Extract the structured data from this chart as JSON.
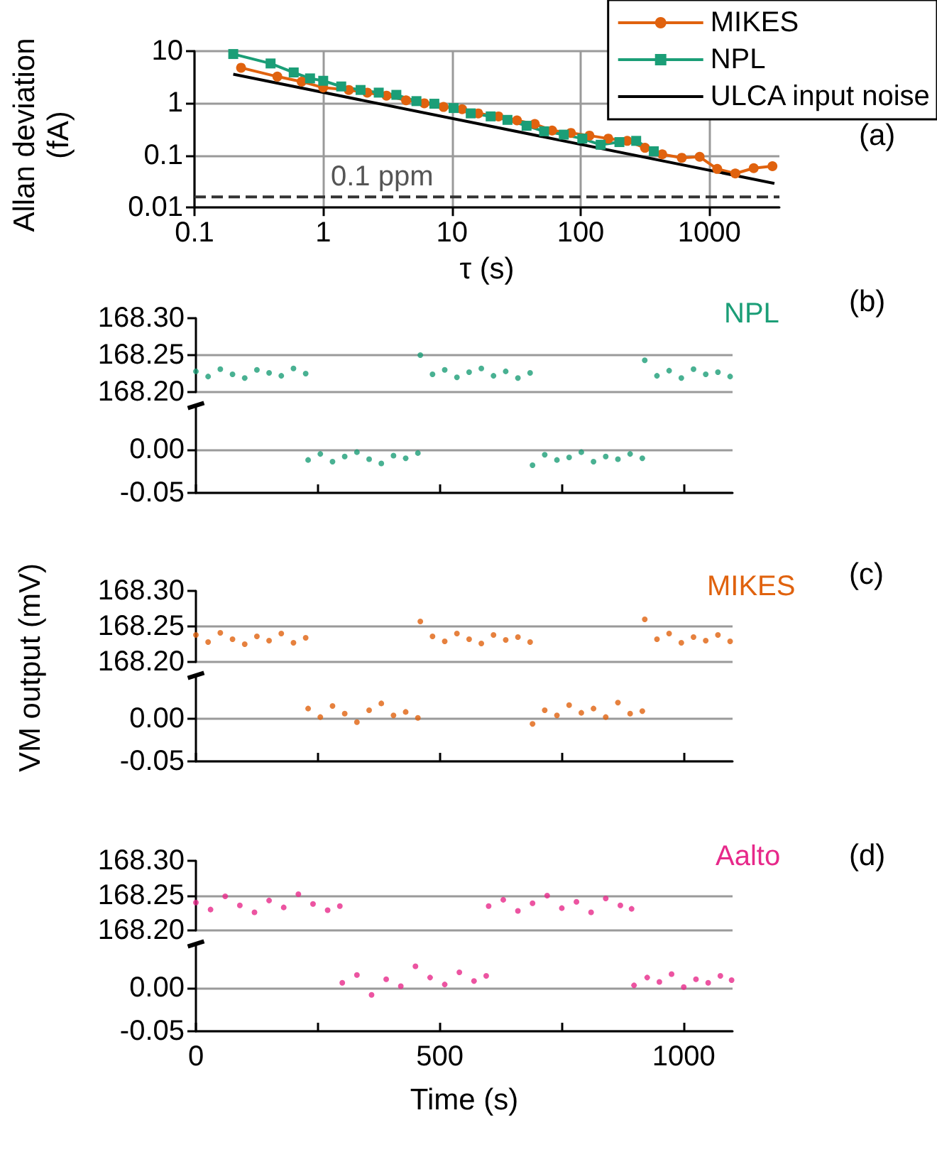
{
  "chart_data": [
    {
      "type": "line",
      "ylabel": "Allan deviation (fA)",
      "xlabel": "τ (s)",
      "log": "xy",
      "grid": true,
      "legend": "top right",
      "annotations": [
        "(a)"
      ],
      "xlim": [
        0.1,
        3500
      ],
      "xticks": [
        0.1,
        1,
        10,
        100,
        1000
      ],
      "ylim": [
        0.01,
        10
      ],
      "yticks": [
        0.01,
        0.1,
        1,
        10
      ],
      "ref_lines": [
        {
          "axis": "y",
          "value": 0.016,
          "label": "0.1 ppm",
          "color": "#333333",
          "line_style": "dashed"
        }
      ],
      "series": [
        {
          "name": "MIKES",
          "color": "#e0620e",
          "marker": "circle",
          "x": [
            0.23,
            0.44,
            0.68,
            1.0,
            1.58,
            2.2,
            3.1,
            4.4,
            6.1,
            8.6,
            12,
            16,
            23,
            32,
            44,
            60,
            84,
            117,
            164,
            230,
            316,
            430,
            610,
            840,
            1150,
            1590,
            2210,
            3090
          ],
          "values": [
            4.8,
            3.25,
            2.6,
            2.0,
            1.8,
            1.6,
            1.4,
            1.14,
            1.0,
            0.85,
            0.77,
            0.64,
            0.56,
            0.47,
            0.4,
            0.3,
            0.27,
            0.24,
            0.21,
            0.19,
            0.14,
            0.105,
            0.09,
            0.094,
            0.055,
            0.045,
            0.057,
            0.062
          ]
        },
        {
          "name": "NPL",
          "color": "#1b9e77",
          "marker": "square",
          "x": [
            0.2,
            0.39,
            0.59,
            0.79,
            1.0,
            1.38,
            1.95,
            2.7,
            3.7,
            5.3,
            7.3,
            10.3,
            14,
            20,
            27,
            38,
            52,
            74,
            103,
            143,
            200,
            270,
            370
          ],
          "values": [
            8.8,
            5.8,
            3.9,
            3.0,
            2.7,
            2.1,
            1.8,
            1.6,
            1.45,
            1.1,
            0.98,
            0.81,
            0.64,
            0.56,
            0.48,
            0.37,
            0.29,
            0.25,
            0.21,
            0.16,
            0.18,
            0.19,
            0.12
          ]
        },
        {
          "name": "ULCA input noise",
          "color": "#000000",
          "marker": "none",
          "x": [
            0.2,
            3200
          ],
          "values": [
            3.6,
            0.029
          ]
        }
      ]
    },
    {
      "type": "scatter",
      "marker": "circle",
      "legend": "top right",
      "grid": "y",
      "tick_labels": "y",
      "annotations": [
        "(b)"
      ],
      "xlim": [
        0,
        1100
      ],
      "ylim": [
        168.2,
        168.3
      ],
      "yticks": [
        {
          "value": 168.2,
          "label": "168.20"
        },
        {
          "value": 168.25,
          "label": "168.25"
        },
        {
          "value": 168.3,
          "label": "168.30"
        }
      ],
      "series": [
        {
          "name": "NPL",
          "color": "#1b9e77",
          "x": [
            0,
            25,
            50,
            75,
            100,
            125,
            150,
            175,
            200,
            225,
            460,
            485,
            510,
            535,
            560,
            585,
            610,
            635,
            660,
            685,
            920,
            945,
            970,
            995,
            1020,
            1045,
            1070,
            1095
          ],
          "values": [
            168.228,
            168.221,
            168.231,
            168.224,
            168.219,
            168.23,
            168.226,
            168.222,
            168.232,
            168.225,
            168.25,
            168.224,
            168.23,
            168.22,
            168.227,
            168.232,
            168.222,
            168.228,
            168.219,
            168.226,
            168.243,
            168.222,
            168.229,
            168.219,
            168.231,
            168.224,
            168.227,
            168.221
          ]
        }
      ]
    },
    {
      "type": "scatter",
      "marker": "circle",
      "grid": "y",
      "tick_labels": "y",
      "xlim": [
        0,
        1100
      ],
      "xticks": [
        {
          "value": 0,
          "label": null
        },
        {
          "value": 250,
          "label": null
        },
        {
          "value": 500,
          "label": null
        },
        {
          "value": 750,
          "label": null
        },
        {
          "value": 1000,
          "label": null
        }
      ],
      "ylim": [
        -0.05,
        0.05
      ],
      "yticks": [
        {
          "value": -0.05,
          "label": "-0.05"
        },
        {
          "value": 0,
          "label": "0.00"
        }
      ],
      "series": [
        {
          "color": "#1b9e77",
          "x": [
            230,
            255,
            280,
            305,
            330,
            355,
            380,
            405,
            430,
            455,
            690,
            715,
            740,
            765,
            790,
            815,
            840,
            865,
            890,
            915
          ],
          "values": [
            -0.012,
            -0.005,
            -0.014,
            -0.008,
            -0.003,
            -0.011,
            -0.016,
            -0.007,
            -0.01,
            -0.004,
            -0.018,
            -0.006,
            -0.012,
            -0.009,
            -0.003,
            -0.014,
            -0.008,
            -0.011,
            -0.005,
            -0.01
          ]
        }
      ]
    },
    {
      "type": "scatter",
      "marker": "circle",
      "legend": "top right",
      "grid": "y",
      "tick_labels": "y",
      "annotations": [
        "(c)"
      ],
      "ylabel": "VM output (mV)",
      "xlim": [
        0,
        1100
      ],
      "ylim": [
        168.2,
        168.3
      ],
      "yticks": [
        {
          "value": 168.2,
          "label": "168.20"
        },
        {
          "value": 168.25,
          "label": "168.25"
        },
        {
          "value": 168.3,
          "label": "168.30"
        }
      ],
      "series": [
        {
          "name": "MIKES",
          "color": "#e0620e",
          "x": [
            0,
            25,
            50,
            75,
            100,
            125,
            150,
            175,
            200,
            225,
            460,
            485,
            510,
            535,
            560,
            585,
            610,
            635,
            660,
            685,
            920,
            945,
            970,
            995,
            1020,
            1045,
            1070,
            1095
          ],
          "values": [
            168.238,
            168.228,
            168.241,
            168.232,
            168.225,
            168.236,
            168.23,
            168.24,
            168.227,
            168.234,
            168.257,
            168.236,
            168.229,
            168.24,
            168.232,
            168.226,
            168.238,
            168.231,
            168.235,
            168.228,
            168.26,
            168.232,
            168.24,
            168.227,
            168.235,
            168.23,
            168.238,
            168.229
          ]
        }
      ]
    },
    {
      "type": "scatter",
      "marker": "circle",
      "grid": "y",
      "tick_labels": "y",
      "xlim": [
        0,
        1100
      ],
      "xticks": [
        {
          "value": 0,
          "label": null
        },
        {
          "value": 250,
          "label": null
        },
        {
          "value": 500,
          "label": null
        },
        {
          "value": 750,
          "label": null
        },
        {
          "value": 1000,
          "label": null
        }
      ],
      "ylim": [
        -0.05,
        0.05
      ],
      "yticks": [
        {
          "value": -0.05,
          "label": "-0.05"
        },
        {
          "value": 0,
          "label": "0.00"
        }
      ],
      "series": [
        {
          "color": "#e0620e",
          "x": [
            230,
            255,
            280,
            305,
            330,
            355,
            380,
            405,
            430,
            455,
            690,
            715,
            740,
            765,
            790,
            815,
            840,
            865,
            890,
            915
          ],
          "values": [
            0.012,
            0.002,
            0.015,
            0.006,
            -0.004,
            0.01,
            0.018,
            0.004,
            0.008,
            0.001,
            -0.006,
            0.01,
            0.004,
            0.016,
            0.007,
            0.012,
            0.002,
            0.019,
            0.006,
            0.009
          ]
        }
      ]
    },
    {
      "type": "scatter",
      "marker": "circle",
      "legend": "top right",
      "grid": "y",
      "tick_labels": "y",
      "annotations": [
        "(d)"
      ],
      "xlim": [
        0,
        1100
      ],
      "ylim": [
        168.2,
        168.3
      ],
      "yticks": [
        {
          "value": 168.2,
          "label": "168.20"
        },
        {
          "value": 168.25,
          "label": "168.25"
        },
        {
          "value": 168.3,
          "label": "168.30"
        }
      ],
      "series": [
        {
          "name": "Aalto",
          "color": "#e7298a",
          "x": [
            0,
            30,
            60,
            90,
            120,
            150,
            180,
            210,
            240,
            270,
            295,
            600,
            630,
            660,
            690,
            720,
            750,
            780,
            810,
            840,
            870,
            893
          ],
          "values": [
            168.24,
            168.23,
            168.249,
            168.236,
            168.226,
            168.243,
            168.233,
            168.252,
            168.238,
            168.229,
            168.235,
            168.235,
            168.244,
            168.228,
            168.239,
            168.25,
            168.232,
            168.241,
            168.226,
            168.246,
            168.236,
            168.231
          ]
        }
      ]
    },
    {
      "type": "scatter",
      "marker": "circle",
      "grid": "y",
      "xlabel": "Time (s)",
      "xlim": [
        0,
        1100
      ],
      "xticks": [
        0,
        {
          "value": 250,
          "label": null
        },
        500,
        {
          "value": 750,
          "label": null
        },
        1000
      ],
      "ylim": [
        -0.05,
        0.05
      ],
      "yticks": [
        {
          "value": -0.05,
          "label": "-0.05"
        },
        {
          "value": 0,
          "label": "0.00"
        }
      ],
      "series": [
        {
          "color": "#e7298a",
          "x": [
            300,
            330,
            360,
            390,
            420,
            450,
            480,
            510,
            540,
            570,
            595,
            898,
            925,
            950,
            975,
            1000,
            1025,
            1050,
            1075,
            1098
          ],
          "values": [
            0.006,
            0.015,
            -0.008,
            0.01,
            0.002,
            0.025,
            0.012,
            0.004,
            0.018,
            0.008,
            0.014,
            0.003,
            0.012,
            0.007,
            0.016,
            0.001,
            0.01,
            0.006,
            0.014,
            0.009
          ]
        }
      ]
    }
  ]
}
